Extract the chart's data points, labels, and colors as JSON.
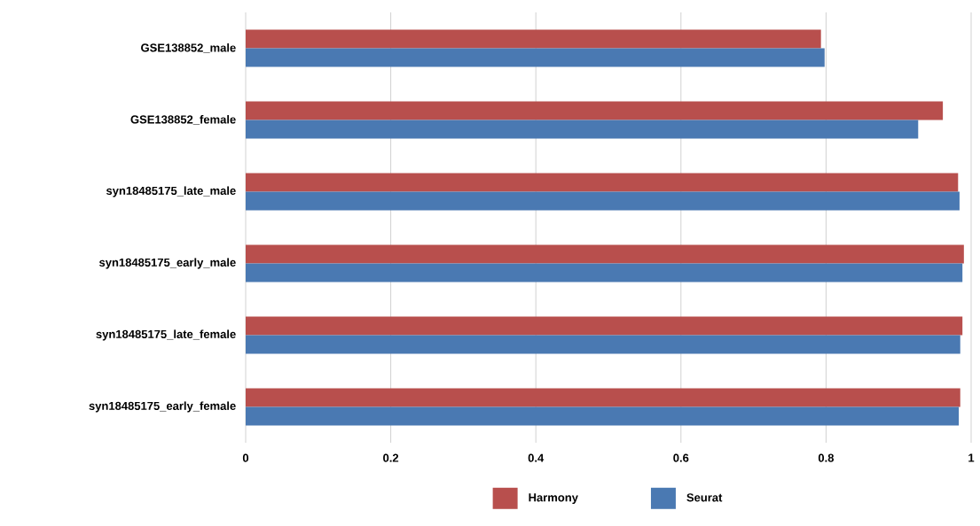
{
  "chart_data": {
    "type": "bar",
    "orientation": "horizontal",
    "categories": [
      "GSE138852_male",
      "GSE138852_female",
      "syn18485175_late_male",
      "syn18485175_early_male",
      "syn18485175_late_female",
      "syn18485175_early_female"
    ],
    "series": [
      {
        "name": "Harmony",
        "color": "#b84f4d",
        "values": [
          0.793,
          0.961,
          0.982,
          0.99,
          0.988,
          0.985
        ]
      },
      {
        "name": "Seurat",
        "color": "#4a79b2",
        "values": [
          0.798,
          0.927,
          0.984,
          0.988,
          0.985,
          0.983
        ]
      }
    ],
    "xlim": [
      0,
      1
    ],
    "xticks": [
      0,
      0.2,
      0.4,
      0.6,
      0.8,
      1
    ],
    "grid": "x",
    "legend": "bottom"
  }
}
